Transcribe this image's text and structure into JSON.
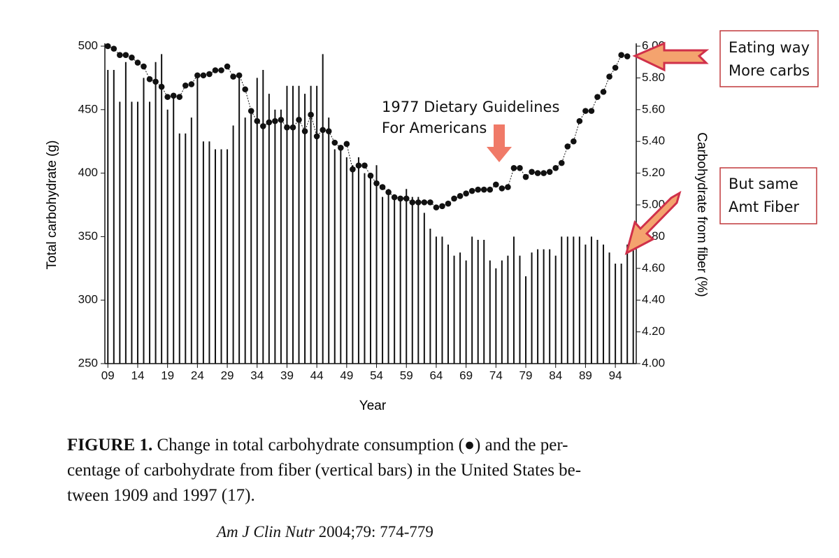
{
  "chart_data": {
    "type": "bar-line",
    "x_label": "Year",
    "y_label": "Total carbohydrate (g)",
    "y2_label": "Carbohydrate from fiber (%)",
    "x": [
      1909,
      1910,
      1911,
      1912,
      1913,
      1914,
      1915,
      1916,
      1917,
      1918,
      1919,
      1920,
      1921,
      1922,
      1923,
      1924,
      1925,
      1926,
      1927,
      1928,
      1929,
      1930,
      1931,
      1932,
      1933,
      1934,
      1935,
      1936,
      1937,
      1938,
      1939,
      1940,
      1941,
      1942,
      1943,
      1944,
      1945,
      1946,
      1947,
      1948,
      1949,
      1950,
      1951,
      1952,
      1953,
      1954,
      1955,
      1956,
      1957,
      1958,
      1959,
      1960,
      1961,
      1962,
      1963,
      1964,
      1965,
      1966,
      1967,
      1968,
      1969,
      1970,
      1971,
      1972,
      1973,
      1974,
      1975,
      1976,
      1977,
      1978,
      1979,
      1980,
      1981,
      1982,
      1983,
      1984,
      1985,
      1986,
      1987,
      1988,
      1989,
      1990,
      1991,
      1992,
      1993,
      1994,
      1995,
      1996,
      1997
    ],
    "series": [
      {
        "name": "Total carbohydrate",
        "color": "#111111",
        "mark": "dot",
        "axis": "y",
        "values": [
          500,
          498,
          493,
          493,
          491,
          487,
          484,
          474,
          472,
          468,
          460,
          461,
          460,
          469,
          470,
          477,
          477,
          478,
          481,
          481,
          484,
          476,
          477,
          466,
          449,
          441,
          437,
          440,
          441,
          442,
          436,
          436,
          442,
          433,
          446,
          429,
          434,
          433,
          424,
          420,
          423,
          403,
          406,
          406,
          398,
          392,
          389,
          385,
          381,
          380,
          380,
          377,
          377,
          377,
          377,
          373,
          374,
          376,
          380,
          382,
          384,
          386,
          387,
          387,
          387,
          391,
          388,
          389,
          404,
          404,
          397,
          401,
          400,
          400,
          401,
          404,
          408,
          421,
          425,
          441,
          449,
          449,
          460,
          464,
          476,
          483,
          493,
          492,
          null
        ]
      },
      {
        "name": "Carbohydrate from fiber",
        "color": "#111111",
        "mark": "bar",
        "axis": "y2",
        "values": [
          5.85,
          5.85,
          5.65,
          5.9,
          5.65,
          5.65,
          5.8,
          5.65,
          5.9,
          5.95,
          5.6,
          5.7,
          5.45,
          5.45,
          5.55,
          5.8,
          5.4,
          5.4,
          5.35,
          5.35,
          5.35,
          5.5,
          5.8,
          5.55,
          5.6,
          5.8,
          5.85,
          5.7,
          5.6,
          5.6,
          5.75,
          5.75,
          5.75,
          5.7,
          5.75,
          5.75,
          5.95,
          5.55,
          5.35,
          5.35,
          5.3,
          5.25,
          5.3,
          5.2,
          5.2,
          5.25,
          5.05,
          5.1,
          5.05,
          5.05,
          5.1,
          5.05,
          5.05,
          4.95,
          4.85,
          4.8,
          4.8,
          4.75,
          4.68,
          4.7,
          4.65,
          4.8,
          4.78,
          4.78,
          4.65,
          4.6,
          4.65,
          4.68,
          4.8,
          4.68,
          4.55,
          4.7,
          4.72,
          4.72,
          4.72,
          4.68,
          4.8,
          4.8,
          4.8,
          4.8,
          4.75,
          4.8,
          4.78,
          4.75,
          4.7,
          4.63,
          4.63,
          4.75,
          4.75
        ]
      }
    ],
    "xlim": [
      1908.5,
      1997.5
    ],
    "xticks": [
      {
        "value": 1909,
        "label": "09"
      },
      {
        "value": 1914,
        "label": "14"
      },
      {
        "value": 1919,
        "label": "19"
      },
      {
        "value": 1924,
        "label": "24"
      },
      {
        "value": 1929,
        "label": "29"
      },
      {
        "value": 1934,
        "label": "34"
      },
      {
        "value": 1939,
        "label": "39"
      },
      {
        "value": 1944,
        "label": "44"
      },
      {
        "value": 1949,
        "label": "49"
      },
      {
        "value": 1954,
        "label": "54"
      },
      {
        "value": 1959,
        "label": "59"
      },
      {
        "value": 1964,
        "label": "64"
      },
      {
        "value": 1969,
        "label": "69"
      },
      {
        "value": 1974,
        "label": "74"
      },
      {
        "value": 1979,
        "label": "79"
      },
      {
        "value": 1984,
        "label": "84"
      },
      {
        "value": 1989,
        "label": "89"
      },
      {
        "value": 1994,
        "label": "94"
      }
    ],
    "ylim": [
      250,
      500
    ],
    "yticks": [
      250,
      300,
      350,
      400,
      450,
      500
    ],
    "y2lim": [
      4,
      6
    ],
    "y2ticks": [
      {
        "value": 4,
        "label": "4.00"
      },
      {
        "value": 4.2,
        "label": "4.20"
      },
      {
        "value": 4.4,
        "label": "4.40"
      },
      {
        "value": 4.6,
        "label": "4.60"
      },
      {
        "value": 4.8,
        "label": "4.80"
      },
      {
        "value": 5,
        "label": "5.00"
      },
      {
        "value": 5.2,
        "label": "5.20"
      },
      {
        "value": 5.4,
        "label": "5.40"
      },
      {
        "value": 5.6,
        "label": "5.60"
      },
      {
        "value": 5.8,
        "label": "5.80"
      },
      {
        "value": 6,
        "label": "6.00"
      }
    ],
    "annotations": [
      {
        "lines": [
          "1977 Dietary Guidelines",
          "For Americans"
        ]
      },
      {
        "lines": [
          "Eating way",
          "More carbs"
        ]
      },
      {
        "lines": [
          "But same",
          "Amt Fiber"
        ]
      }
    ],
    "caption": {
      "label": "FIGURE 1.",
      "lines": [
        " Change in total carbohydrate consumption (●) and the per-",
        "centage of carbohydrate from fiber (vertical bars) in the United States be-",
        "tween 1909 and 1997 (17)."
      ]
    },
    "citation": {
      "journal": "Am J Clin Nutr",
      "details": " 2004;79: 774-779"
    }
  }
}
